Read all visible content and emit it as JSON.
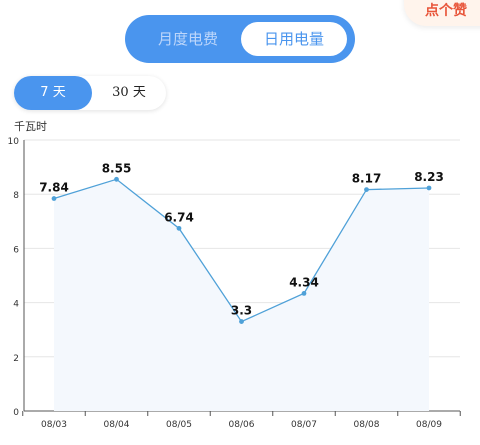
{
  "badge": {
    "text": "点个赞"
  },
  "toggle": {
    "left_label": "月度电费",
    "right_label": "日用电量"
  },
  "range": {
    "seven_label": "7 天",
    "thirty_label": "30 天"
  },
  "chart_data": {
    "type": "area",
    "ylabel": "千瓦时",
    "xlabel": "",
    "ylim": [
      0,
      10
    ],
    "yticks": [
      "0",
      "2",
      "4",
      "6",
      "8",
      "10"
    ],
    "categories": [
      "08/03",
      "08/04",
      "08/05",
      "08/06",
      "08/07",
      "08/08",
      "08/09"
    ],
    "values": [
      7.84,
      8.55,
      6.74,
      3.3,
      4.34,
      8.17,
      8.23
    ],
    "labels": [
      "7.84",
      "8.55",
      "6.74",
      "3.3",
      "4.34",
      "8.17",
      "8.23"
    ],
    "grid": true,
    "line_color": "#4fa1d8",
    "fill_color": "#f4f8fd"
  }
}
